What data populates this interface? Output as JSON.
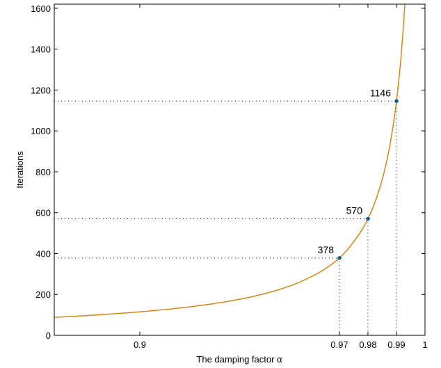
{
  "chart_data": {
    "type": "line",
    "title": "",
    "xlabel": "The damping factor α",
    "ylabel": "Iterations",
    "xlim": [
      0.87,
      1.0
    ],
    "ylim": [
      0,
      1620
    ],
    "x_ticks": [
      {
        "value": 0.9,
        "label": "0.9"
      },
      {
        "value": 0.97,
        "label": "0.97"
      },
      {
        "value": 0.98,
        "label": "0.98"
      },
      {
        "value": 0.99,
        "label": "0.99"
      },
      {
        "value": 1.0,
        "label": "1"
      }
    ],
    "y_ticks": [
      {
        "value": 0,
        "label": "0"
      },
      {
        "value": 200,
        "label": "200"
      },
      {
        "value": 400,
        "label": "400"
      },
      {
        "value": 600,
        "label": "600"
      },
      {
        "value": 800,
        "label": "800"
      },
      {
        "value": 1000,
        "label": "1000"
      },
      {
        "value": 1200,
        "label": "1200"
      },
      {
        "value": 1400,
        "label": "1400"
      },
      {
        "value": 1600,
        "label": "1600"
      }
    ],
    "grid": false,
    "series": [
      {
        "color": "#d9840f",
        "curve_model": "iterations ≈ 11.45 / (1 − α)",
        "x": [
          0.87,
          0.9,
          0.93,
          0.95,
          0.96,
          0.97,
          0.975,
          0.98,
          0.985,
          0.99,
          0.993
        ],
        "y": [
          88,
          115,
          164,
          229,
          286,
          378,
          458,
          570,
          763,
          1146,
          1636
        ]
      }
    ],
    "highlighted_points": [
      {
        "x": 0.97,
        "y": 378,
        "label": "378"
      },
      {
        "x": 0.98,
        "y": 570,
        "label": "570"
      },
      {
        "x": 0.99,
        "y": 1146,
        "label": "1146"
      }
    ],
    "point_color": "#0a5f8c"
  }
}
